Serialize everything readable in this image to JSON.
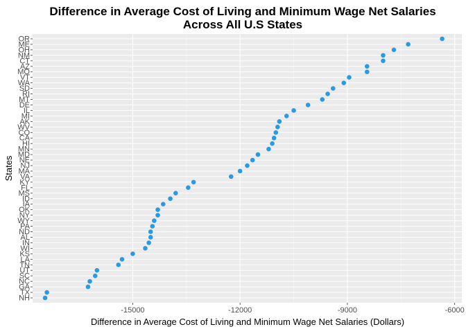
{
  "chart_data": {
    "type": "scatter",
    "title_lines": [
      "Difference in Average Cost of Living and Minimum Wage Net Salaries",
      "Across All U.S States"
    ],
    "xlabel": "Difference in Average Cost of Living and Minimum Wage Net Salaries (Dollars)",
    "ylabel": "States",
    "xlim": [
      -17800,
      -5800
    ],
    "x_ticks": [
      -15000,
      -12000,
      -9000,
      -6000
    ],
    "x_tick_labels": [
      "-15000",
      "-12000",
      "-9000",
      "-6000"
    ],
    "grid": true,
    "panel_background": "#ebebeb",
    "point_color": "#2b9be0",
    "categories": [
      "OR",
      "ME",
      "OH",
      "NM",
      "CT",
      "AZ",
      "MO",
      "VT",
      "WA",
      "SD",
      "RI",
      "MT",
      "DE",
      "IL",
      "MI",
      "AK",
      "WV",
      "CO",
      "CA",
      "HI",
      "MN",
      "MD",
      "NE",
      "NJ",
      "MA",
      "VA",
      "KY",
      "FL",
      "MS",
      "ID",
      "IA",
      "OK",
      "NY",
      "WY",
      "PA",
      "ND",
      "AL",
      "IN",
      "WI",
      "KS",
      "LA",
      "TN",
      "UT",
      "SC",
      "NC",
      "GA",
      "TX",
      "NH"
    ],
    "values": [
      -6350,
      -7300,
      -7700,
      -8000,
      -8000,
      -8450,
      -8450,
      -8950,
      -9100,
      -9400,
      -9550,
      -9700,
      -10100,
      -10500,
      -10700,
      -10900,
      -10950,
      -11000,
      -11050,
      -11100,
      -11200,
      -11500,
      -11650,
      -11800,
      -12000,
      -12250,
      -13300,
      -13450,
      -13800,
      -13950,
      -14150,
      -14300,
      -14300,
      -14400,
      -14450,
      -14500,
      -14500,
      -14550,
      -14650,
      -15000,
      -15300,
      -15400,
      -16000,
      -16050,
      -16200,
      -16250,
      -17400,
      -17450
    ]
  }
}
